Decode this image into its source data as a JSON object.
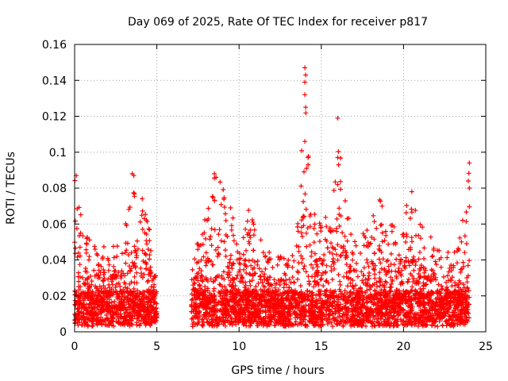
{
  "chart_data": {
    "type": "scatter",
    "title": "Day 069 of 2025, Rate Of TEC Index for receiver p817",
    "xlabel": "GPS time / hours",
    "ylabel": "ROTI / TECUs",
    "xlim": [
      0,
      25
    ],
    "ylim": [
      0,
      0.16
    ],
    "x_ticks": [
      0,
      5,
      10,
      15,
      20,
      25
    ],
    "x_tick_labels": [
      "0",
      "5",
      "10",
      "15",
      "20",
      "25"
    ],
    "y_ticks": [
      0,
      0.02,
      0.04,
      0.06,
      0.08,
      0.1,
      0.12,
      0.14,
      0.16
    ],
    "y_tick_labels": [
      "0",
      "0.02",
      "0.04",
      "0.06",
      "0.08",
      "0.1",
      "0.12",
      "0.14",
      "0.16"
    ],
    "grid": true,
    "marker": "+",
    "color": "#ff0000",
    "envelope": [
      [
        0.0,
        0.087
      ],
      [
        0.2,
        0.079
      ],
      [
        0.5,
        0.055
      ],
      [
        1.0,
        0.054
      ],
      [
        1.5,
        0.048
      ],
      [
        2.0,
        0.048
      ],
      [
        2.5,
        0.052
      ],
      [
        3.0,
        0.055
      ],
      [
        3.5,
        0.088
      ],
      [
        4.0,
        0.081
      ],
      [
        4.5,
        0.06
      ],
      [
        5.0,
        0.03
      ],
      [
        7.1,
        0.047
      ],
      [
        7.5,
        0.05
      ],
      [
        8.0,
        0.065
      ],
      [
        8.5,
        0.089
      ],
      [
        9.0,
        0.083
      ],
      [
        9.5,
        0.07
      ],
      [
        10.0,
        0.045
      ],
      [
        10.5,
        0.07
      ],
      [
        11.0,
        0.063
      ],
      [
        11.5,
        0.047
      ],
      [
        12.0,
        0.045
      ],
      [
        12.5,
        0.043
      ],
      [
        13.0,
        0.04
      ],
      [
        13.5,
        0.05
      ],
      [
        14.0,
        0.147
      ],
      [
        14.5,
        0.065
      ],
      [
        15.0,
        0.068
      ],
      [
        15.5,
        0.06
      ],
      [
        16.0,
        0.119
      ],
      [
        16.5,
        0.07
      ],
      [
        17.0,
        0.057
      ],
      [
        17.5,
        0.055
      ],
      [
        18.0,
        0.06
      ],
      [
        18.5,
        0.078
      ],
      [
        19.0,
        0.06
      ],
      [
        19.5,
        0.06
      ],
      [
        20.0,
        0.07
      ],
      [
        20.5,
        0.078
      ],
      [
        21.0,
        0.06
      ],
      [
        21.5,
        0.055
      ],
      [
        22.0,
        0.05
      ],
      [
        22.5,
        0.045
      ],
      [
        23.0,
        0.045
      ],
      [
        23.5,
        0.055
      ],
      [
        24.0,
        0.094
      ]
    ],
    "outliers": [
      [
        0.1,
        0.087
      ],
      [
        3.5,
        0.088
      ],
      [
        3.6,
        0.087
      ],
      [
        8.5,
        0.088
      ],
      [
        8.6,
        0.086
      ],
      [
        14.0,
        0.147
      ],
      [
        14.05,
        0.143
      ],
      [
        14.0,
        0.139
      ],
      [
        14.0,
        0.132
      ],
      [
        14.05,
        0.125
      ],
      [
        14.0,
        0.106
      ],
      [
        14.2,
        0.097
      ],
      [
        14.2,
        0.093
      ],
      [
        14.1,
        0.091
      ],
      [
        16.0,
        0.119
      ],
      [
        16.0,
        0.097
      ],
      [
        16.05,
        0.093
      ],
      [
        16.0,
        0.082
      ],
      [
        20.5,
        0.078
      ],
      [
        24.0,
        0.094
      ],
      [
        24.0,
        0.08
      ]
    ]
  }
}
